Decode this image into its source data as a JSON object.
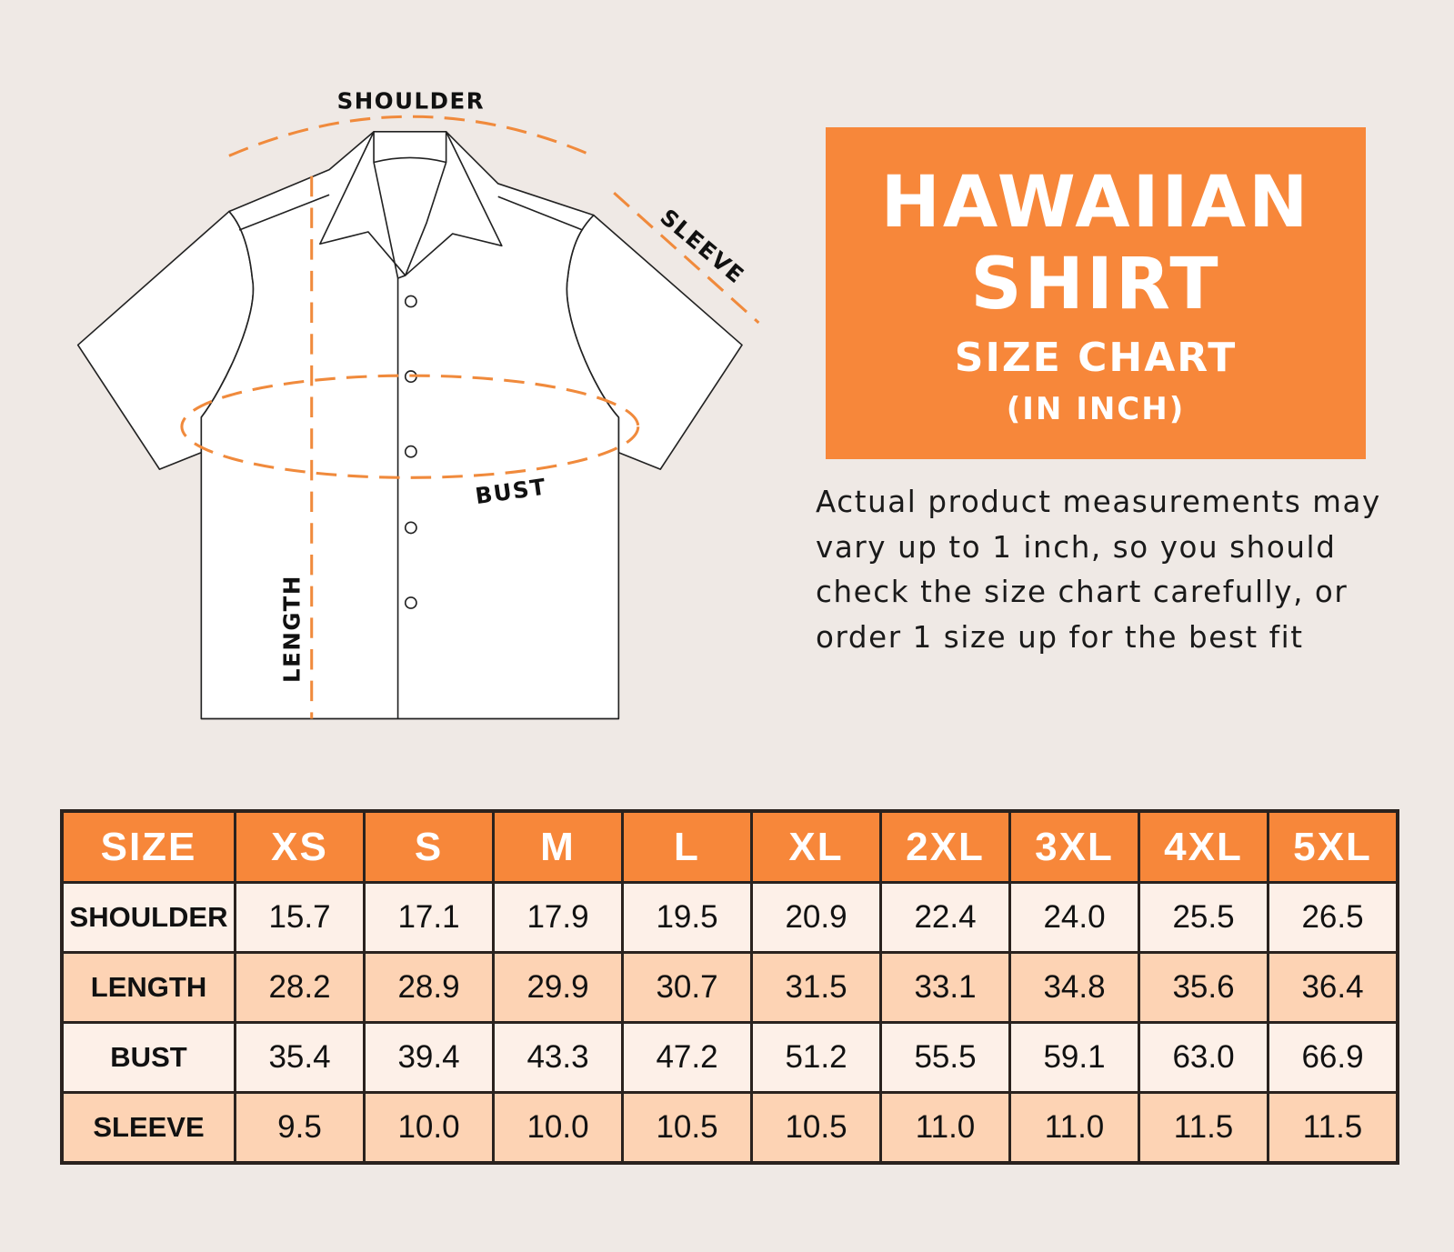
{
  "diagram": {
    "labels": {
      "shoulder": "SHOULDER",
      "sleeve": "SLEEVE",
      "bust": "BUST",
      "length": "LENGTH"
    }
  },
  "title": {
    "line1": "HAWAIIAN",
    "line2": "SHIRT",
    "line3": "SIZE CHART",
    "line4": "(IN INCH)"
  },
  "note": "Actual product measurements may vary up to 1 inch, so you should check the size chart carefully, or order 1 size up for the best fit",
  "colors": {
    "accent": "#f7873a",
    "background": "#efe9e5",
    "row_light": "#fdf0e8",
    "row_peach": "#fdd3b4",
    "border": "#2a221e"
  },
  "table": {
    "headers": [
      "SIZE",
      "XS",
      "S",
      "M",
      "L",
      "XL",
      "2XL",
      "3XL",
      "4XL",
      "5XL"
    ],
    "rows": [
      {
        "label": "SHOULDER",
        "values": [
          "15.7",
          "17.1",
          "17.9",
          "19.5",
          "20.9",
          "22.4",
          "24.0",
          "25.5",
          "26.5"
        ]
      },
      {
        "label": "LENGTH",
        "values": [
          "28.2",
          "28.9",
          "29.9",
          "30.7",
          "31.5",
          "33.1",
          "34.8",
          "35.6",
          "36.4"
        ]
      },
      {
        "label": "BUST",
        "values": [
          "35.4",
          "39.4",
          "43.3",
          "47.2",
          "51.2",
          "55.5",
          "59.1",
          "63.0",
          "66.9"
        ]
      },
      {
        "label": "SLEEVE",
        "values": [
          "9.5",
          "10.0",
          "10.0",
          "10.5",
          "10.5",
          "11.0",
          "11.0",
          "11.5",
          "11.5"
        ]
      }
    ]
  }
}
